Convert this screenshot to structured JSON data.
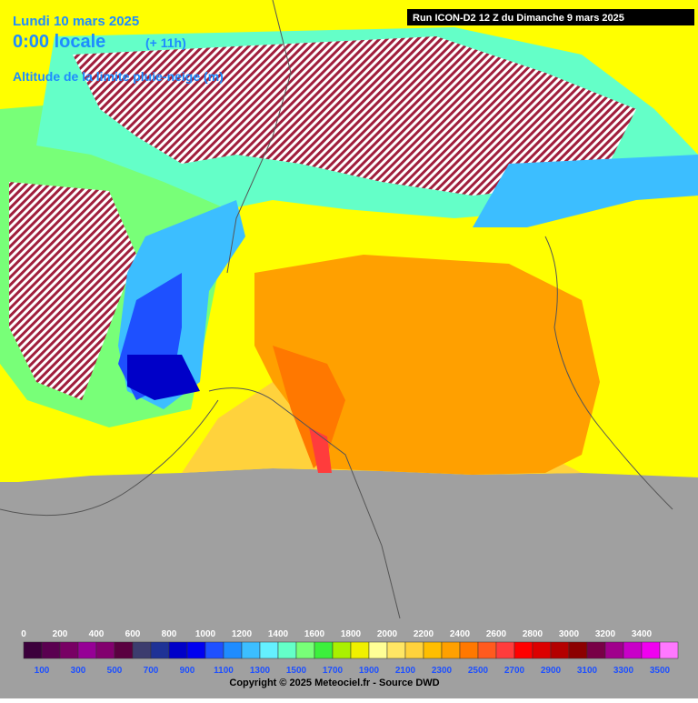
{
  "header": {
    "date": "Lundi 10 mars 2025",
    "time": "0:00 locale",
    "offset": "(+ 11h)",
    "field": "Altitude de la limite pluie-neige (m)",
    "run": "Run ICON-D2 12 Z du Dimanche 9 mars 2025"
  },
  "legend": {
    "stops": [
      {
        "value": 0,
        "color": "#3c003c"
      },
      {
        "value": 100,
        "color": "#5a0050"
      },
      {
        "value": 200,
        "color": "#780064"
      },
      {
        "value": 300,
        "color": "#960096"
      },
      {
        "value": 400,
        "color": "#82006e"
      },
      {
        "value": 500,
        "color": "#5a0040"
      },
      {
        "value": 600,
        "color": "#3c3c6e"
      },
      {
        "value": 700,
        "color": "#1e3296"
      },
      {
        "value": 800,
        "color": "#0000c8"
      },
      {
        "value": 900,
        "color": "#0000f0"
      },
      {
        "value": 1000,
        "color": "#1e50ff"
      },
      {
        "value": 1100,
        "color": "#1e8cff"
      },
      {
        "value": 1200,
        "color": "#3cbeff"
      },
      {
        "value": 1300,
        "color": "#64f0ff"
      },
      {
        "value": 1400,
        "color": "#64ffc8"
      },
      {
        "value": 1500,
        "color": "#78ff78"
      },
      {
        "value": 1600,
        "color": "#3cf03c"
      },
      {
        "value": 1700,
        "color": "#aaf000"
      },
      {
        "value": 1800,
        "color": "#f0f000"
      },
      {
        "value": 1900,
        "color": "#ffff96"
      },
      {
        "value": 2000,
        "color": "#ffe664"
      },
      {
        "value": 2100,
        "color": "#ffd23c"
      },
      {
        "value": 2200,
        "color": "#ffbe00"
      },
      {
        "value": 2300,
        "color": "#ffa000"
      },
      {
        "value": 2400,
        "color": "#ff7800"
      },
      {
        "value": 2500,
        "color": "#ff5a1e"
      },
      {
        "value": 2600,
        "color": "#ff3c3c"
      },
      {
        "value": 2700,
        "color": "#ff0000"
      },
      {
        "value": 2800,
        "color": "#dc0000"
      },
      {
        "value": 2900,
        "color": "#b40000"
      },
      {
        "value": 3000,
        "color": "#8c0000"
      },
      {
        "value": 3100,
        "color": "#780046"
      },
      {
        "value": 3200,
        "color": "#a0008c"
      },
      {
        "value": 3300,
        "color": "#c800c8"
      },
      {
        "value": 3400,
        "color": "#f000f0"
      },
      {
        "value": 3500,
        "color": "#ff78ff"
      }
    ]
  },
  "footer": {
    "copyright": "Copyright © 2025 Meteociel.fr - Source DWD"
  }
}
